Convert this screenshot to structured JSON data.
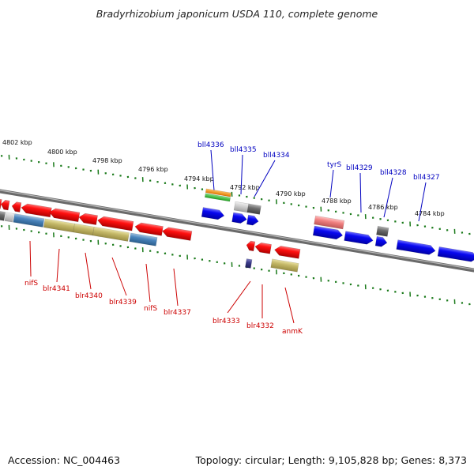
{
  "title": "Bradyrhizobium japonicum USDA 110, complete genome",
  "accession": "Accession: NC_004463",
  "summary": "Topology: circular; Length: 9,105,828 bp; Genes: 8,373",
  "colors": {
    "forward_label": "#0000c0",
    "reverse_label": "#cc0000",
    "ruler_ticks": "#1a7a1a",
    "backbone": "#808080",
    "forward_gene": "#0000ee",
    "reverse_gene": "#ee0000"
  },
  "ruler_labels": [
    "4802 kbp",
    "4800 kbp",
    "4798 kbp",
    "4796 kbp",
    "4794 kbp",
    "4792 kbp",
    "4790 kbp",
    "4788 kbp",
    "4786 kbp",
    "4784 kbp"
  ],
  "forward_labels": [
    "bll4336",
    "bll4335",
    "bll4334",
    "tyrS",
    "bll4329",
    "bll4328",
    "bll4327"
  ],
  "reverse_labels": [
    "nifS",
    "blr4341",
    "blr4340",
    "blr4339",
    "nifS",
    "blr4337",
    "blr4333",
    "blr4332",
    "anmK"
  ]
}
